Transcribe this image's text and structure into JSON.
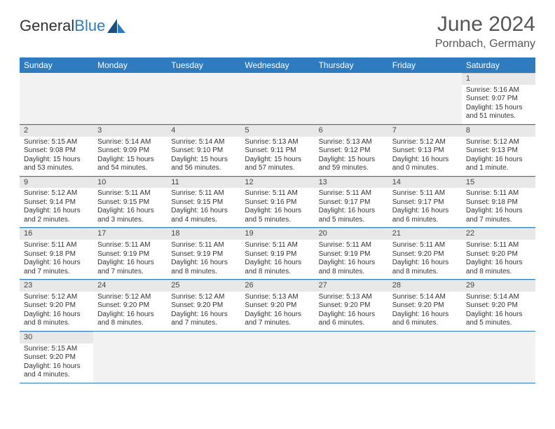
{
  "header": {
    "logo_text_a": "General",
    "logo_text_b": "Blue",
    "month_title": "June 2024",
    "location": "Pornbach, Germany"
  },
  "colors": {
    "header_bg": "#2f7bbf",
    "header_text": "#ffffff",
    "daynum_bg": "#e8e8e8",
    "row_divider": "#2f7bbf",
    "logo_blue": "#2f7bbf",
    "page_bg": "#ffffff",
    "text": "#333333"
  },
  "calendar": {
    "columns": [
      "Sunday",
      "Monday",
      "Tuesday",
      "Wednesday",
      "Thursday",
      "Friday",
      "Saturday"
    ],
    "first_weekday_index": 6,
    "days": [
      {
        "n": 1,
        "sunrise": "5:16 AM",
        "sunset": "9:07 PM",
        "daylight": "15 hours and 51 minutes."
      },
      {
        "n": 2,
        "sunrise": "5:15 AM",
        "sunset": "9:08 PM",
        "daylight": "15 hours and 53 minutes."
      },
      {
        "n": 3,
        "sunrise": "5:14 AM",
        "sunset": "9:09 PM",
        "daylight": "15 hours and 54 minutes."
      },
      {
        "n": 4,
        "sunrise": "5:14 AM",
        "sunset": "9:10 PM",
        "daylight": "15 hours and 56 minutes."
      },
      {
        "n": 5,
        "sunrise": "5:13 AM",
        "sunset": "9:11 PM",
        "daylight": "15 hours and 57 minutes."
      },
      {
        "n": 6,
        "sunrise": "5:13 AM",
        "sunset": "9:12 PM",
        "daylight": "15 hours and 59 minutes."
      },
      {
        "n": 7,
        "sunrise": "5:12 AM",
        "sunset": "9:13 PM",
        "daylight": "16 hours and 0 minutes."
      },
      {
        "n": 8,
        "sunrise": "5:12 AM",
        "sunset": "9:13 PM",
        "daylight": "16 hours and 1 minute."
      },
      {
        "n": 9,
        "sunrise": "5:12 AM",
        "sunset": "9:14 PM",
        "daylight": "16 hours and 2 minutes."
      },
      {
        "n": 10,
        "sunrise": "5:11 AM",
        "sunset": "9:15 PM",
        "daylight": "16 hours and 3 minutes."
      },
      {
        "n": 11,
        "sunrise": "5:11 AM",
        "sunset": "9:15 PM",
        "daylight": "16 hours and 4 minutes."
      },
      {
        "n": 12,
        "sunrise": "5:11 AM",
        "sunset": "9:16 PM",
        "daylight": "16 hours and 5 minutes."
      },
      {
        "n": 13,
        "sunrise": "5:11 AM",
        "sunset": "9:17 PM",
        "daylight": "16 hours and 5 minutes."
      },
      {
        "n": 14,
        "sunrise": "5:11 AM",
        "sunset": "9:17 PM",
        "daylight": "16 hours and 6 minutes."
      },
      {
        "n": 15,
        "sunrise": "5:11 AM",
        "sunset": "9:18 PM",
        "daylight": "16 hours and 7 minutes."
      },
      {
        "n": 16,
        "sunrise": "5:11 AM",
        "sunset": "9:18 PM",
        "daylight": "16 hours and 7 minutes."
      },
      {
        "n": 17,
        "sunrise": "5:11 AM",
        "sunset": "9:19 PM",
        "daylight": "16 hours and 7 minutes."
      },
      {
        "n": 18,
        "sunrise": "5:11 AM",
        "sunset": "9:19 PM",
        "daylight": "16 hours and 8 minutes."
      },
      {
        "n": 19,
        "sunrise": "5:11 AM",
        "sunset": "9:19 PM",
        "daylight": "16 hours and 8 minutes."
      },
      {
        "n": 20,
        "sunrise": "5:11 AM",
        "sunset": "9:19 PM",
        "daylight": "16 hours and 8 minutes."
      },
      {
        "n": 21,
        "sunrise": "5:11 AM",
        "sunset": "9:20 PM",
        "daylight": "16 hours and 8 minutes."
      },
      {
        "n": 22,
        "sunrise": "5:11 AM",
        "sunset": "9:20 PM",
        "daylight": "16 hours and 8 minutes."
      },
      {
        "n": 23,
        "sunrise": "5:12 AM",
        "sunset": "9:20 PM",
        "daylight": "16 hours and 8 minutes."
      },
      {
        "n": 24,
        "sunrise": "5:12 AM",
        "sunset": "9:20 PM",
        "daylight": "16 hours and 8 minutes."
      },
      {
        "n": 25,
        "sunrise": "5:12 AM",
        "sunset": "9:20 PM",
        "daylight": "16 hours and 7 minutes."
      },
      {
        "n": 26,
        "sunrise": "5:13 AM",
        "sunset": "9:20 PM",
        "daylight": "16 hours and 7 minutes."
      },
      {
        "n": 27,
        "sunrise": "5:13 AM",
        "sunset": "9:20 PM",
        "daylight": "16 hours and 6 minutes."
      },
      {
        "n": 28,
        "sunrise": "5:14 AM",
        "sunset": "9:20 PM",
        "daylight": "16 hours and 6 minutes."
      },
      {
        "n": 29,
        "sunrise": "5:14 AM",
        "sunset": "9:20 PM",
        "daylight": "16 hours and 5 minutes."
      },
      {
        "n": 30,
        "sunrise": "5:15 AM",
        "sunset": "9:20 PM",
        "daylight": "16 hours and 4 minutes."
      }
    ],
    "labels": {
      "sunrise": "Sunrise:",
      "sunset": "Sunset:",
      "daylight": "Daylight:"
    }
  }
}
